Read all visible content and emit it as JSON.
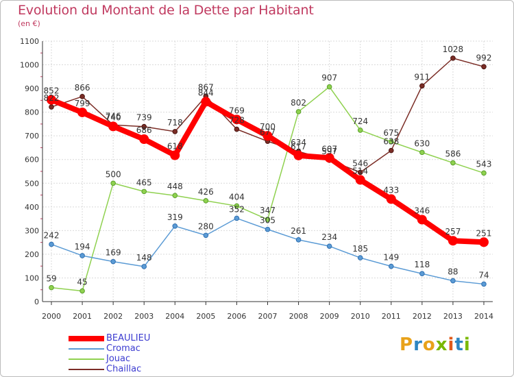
{
  "title": "Evolution du Montant de la Dette par Habitant",
  "subtitle": "(en €)",
  "logo": {
    "letters": [
      "P",
      "r",
      "o",
      "x",
      "i",
      "t",
      "i"
    ],
    "colors": [
      "#e8a21a",
      "#2e86c1",
      "#e8a21a",
      "#7ab800",
      "#e05a1a",
      "#2e86c1",
      "#7ab800"
    ]
  },
  "chart_data": {
    "type": "line",
    "x": [
      "2000",
      "2001",
      "2002",
      "2003",
      "2004",
      "2005",
      "2006",
      "2007",
      "2008",
      "2009",
      "2010",
      "2011",
      "2012",
      "2013",
      "2014"
    ],
    "ylim": [
      0,
      1100
    ],
    "yticks": [
      "0",
      "100",
      "200",
      "300",
      "400",
      "500",
      "600",
      "700",
      "800",
      "900",
      "1000",
      "1100"
    ],
    "grid": true,
    "legend_position": "bottom-left",
    "series": [
      {
        "name": "BEAULIEU",
        "color": "#ff0000",
        "values": [
          852,
          799,
          740,
          686,
          618,
          844,
          769,
          700,
          617,
          607,
          514,
          433,
          346,
          257,
          251
        ],
        "labels": [
          "852",
          "799",
          "740",
          "686",
          "618",
          "844",
          "769",
          "700",
          "617",
          "607",
          "514",
          "433",
          "346",
          "257",
          "251"
        ]
      },
      {
        "name": "Cromac",
        "color": "#5b9bd5",
        "values": [
          242,
          194,
          169,
          148,
          319,
          280,
          352,
          305,
          261,
          234,
          185,
          149,
          118,
          88,
          74
        ],
        "labels": [
          "242",
          "194",
          "169",
          "148",
          "319",
          "280",
          "352",
          "305",
          "261",
          "234",
          "185",
          "149",
          "118",
          "88",
          "74"
        ]
      },
      {
        "name": "Jouac",
        "color": "#8fd14f",
        "values": [
          59,
          45,
          500,
          465,
          448,
          426,
          404,
          347,
          802,
          907,
          724,
          675,
          630,
          586,
          543
        ],
        "labels": [
          "59",
          "45",
          "500",
          "465",
          "448",
          "426",
          "404",
          "347",
          "802",
          "907",
          "724",
          "675",
          "630",
          "586",
          "543"
        ]
      },
      {
        "name": "Chaillac",
        "color": "#7b2d26",
        "values": [
          822,
          866,
          746,
          739,
          718,
          867,
          728,
          677,
          634,
          597,
          546,
          638,
          911,
          1028,
          992
        ],
        "labels": [
          "822",
          "866",
          "746",
          "739",
          "718",
          "867",
          "728",
          "677",
          "634",
          "597",
          "546",
          "638",
          "911",
          "1028",
          "992"
        ]
      }
    ]
  }
}
